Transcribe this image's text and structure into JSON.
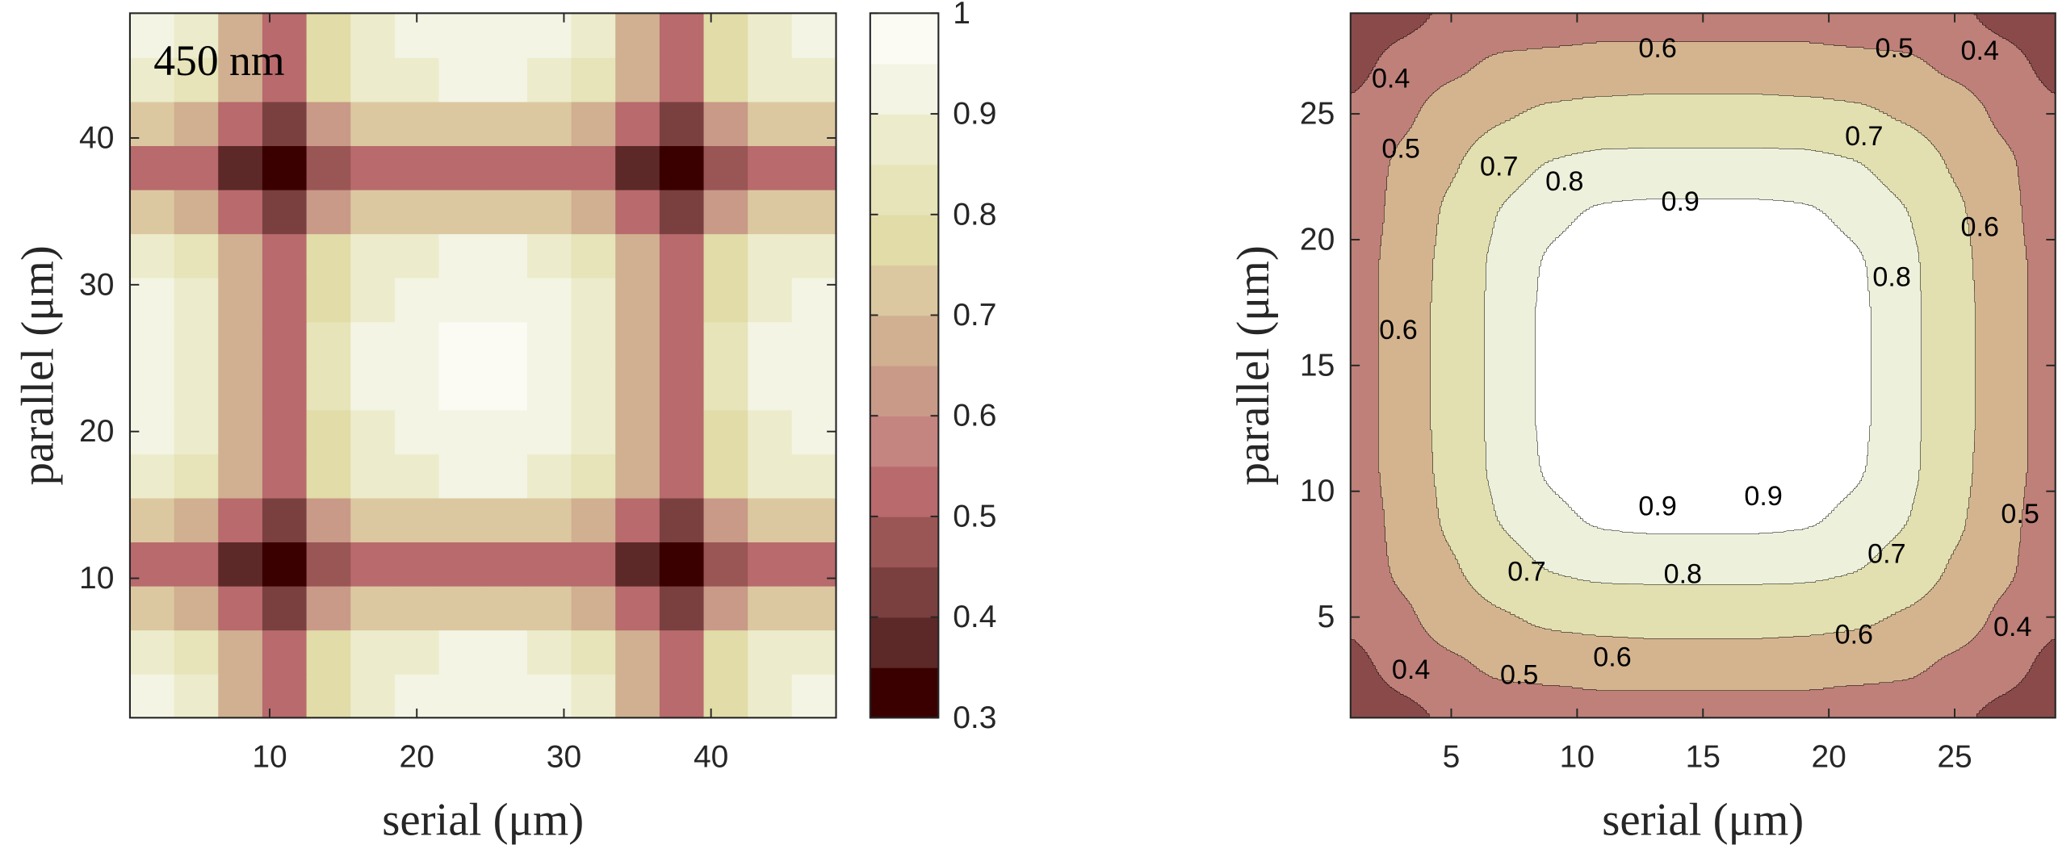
{
  "chart_data": [
    {
      "type": "heatmap",
      "annotation": "450 nm",
      "xlabel": "serial (μm)",
      "ylabel": "parallel (μm)",
      "xlim": [
        0.5,
        48.5
      ],
      "ylim": [
        0.5,
        48.5
      ],
      "xticks": [
        10,
        20,
        30,
        40
      ],
      "yticks": [
        10,
        20,
        30,
        40
      ],
      "x": [
        2,
        5,
        8,
        11,
        14,
        17,
        20,
        23,
        26,
        29,
        32,
        35,
        38,
        41,
        44,
        47
      ],
      "y": [
        2,
        5,
        8,
        11,
        14,
        17,
        20,
        23,
        26,
        29,
        32,
        35,
        38,
        41,
        44,
        47
      ],
      "z": [
        [
          0.9,
          0.86,
          0.67,
          0.52,
          0.78,
          0.89,
          0.9,
          0.93,
          0.93,
          0.9,
          0.86,
          0.67,
          0.52,
          0.78,
          0.89,
          0.9
        ],
        [
          0.88,
          0.84,
          0.65,
          0.51,
          0.76,
          0.87,
          0.88,
          0.91,
          0.91,
          0.88,
          0.84,
          0.65,
          0.51,
          0.76,
          0.87,
          0.88
        ],
        [
          0.71,
          0.68,
          0.53,
          0.41,
          0.62,
          0.71,
          0.71,
          0.74,
          0.74,
          0.71,
          0.68,
          0.53,
          0.41,
          0.62,
          0.71,
          0.71
        ],
        [
          0.52,
          0.5,
          0.39,
          0.3,
          0.45,
          0.52,
          0.52,
          0.54,
          0.54,
          0.52,
          0.5,
          0.39,
          0.3,
          0.45,
          0.52,
          0.52
        ],
        [
          0.71,
          0.68,
          0.53,
          0.41,
          0.62,
          0.71,
          0.71,
          0.74,
          0.74,
          0.71,
          0.68,
          0.53,
          0.41,
          0.62,
          0.71,
          0.71
        ],
        [
          0.88,
          0.84,
          0.65,
          0.51,
          0.76,
          0.87,
          0.88,
          0.91,
          0.91,
          0.88,
          0.84,
          0.65,
          0.51,
          0.76,
          0.87,
          0.88
        ],
        [
          0.9,
          0.86,
          0.67,
          0.52,
          0.78,
          0.89,
          0.9,
          0.93,
          0.93,
          0.9,
          0.86,
          0.67,
          0.52,
          0.78,
          0.89,
          0.9
        ],
        [
          0.93,
          0.88,
          0.69,
          0.54,
          0.8,
          0.92,
          0.93,
          0.96,
          0.96,
          0.93,
          0.88,
          0.69,
          0.54,
          0.8,
          0.92,
          0.93
        ],
        [
          0.93,
          0.88,
          0.69,
          0.54,
          0.8,
          0.92,
          0.93,
          0.96,
          0.96,
          0.93,
          0.88,
          0.69,
          0.54,
          0.8,
          0.92,
          0.93
        ],
        [
          0.9,
          0.86,
          0.67,
          0.52,
          0.78,
          0.89,
          0.9,
          0.93,
          0.93,
          0.9,
          0.86,
          0.67,
          0.52,
          0.78,
          0.89,
          0.9
        ],
        [
          0.88,
          0.84,
          0.65,
          0.51,
          0.76,
          0.87,
          0.88,
          0.91,
          0.91,
          0.88,
          0.84,
          0.65,
          0.51,
          0.76,
          0.87,
          0.88
        ],
        [
          0.71,
          0.68,
          0.53,
          0.41,
          0.62,
          0.71,
          0.71,
          0.74,
          0.74,
          0.71,
          0.68,
          0.53,
          0.41,
          0.62,
          0.71,
          0.71
        ],
        [
          0.52,
          0.5,
          0.39,
          0.3,
          0.45,
          0.52,
          0.52,
          0.54,
          0.54,
          0.52,
          0.5,
          0.39,
          0.3,
          0.45,
          0.52,
          0.52
        ],
        [
          0.71,
          0.68,
          0.53,
          0.41,
          0.62,
          0.71,
          0.71,
          0.74,
          0.74,
          0.71,
          0.68,
          0.53,
          0.41,
          0.62,
          0.71,
          0.71
        ],
        [
          0.88,
          0.84,
          0.65,
          0.51,
          0.76,
          0.87,
          0.88,
          0.91,
          0.91,
          0.88,
          0.84,
          0.65,
          0.51,
          0.76,
          0.87,
          0.88
        ],
        [
          0.9,
          0.86,
          0.67,
          0.52,
          0.78,
          0.89,
          0.9,
          0.93,
          0.93,
          0.9,
          0.86,
          0.67,
          0.52,
          0.78,
          0.89,
          0.9
        ]
      ],
      "clim": [
        0.3,
        1
      ],
      "colors": [
        "#3a0000",
        "#5c2828",
        "#7a4040",
        "#9a5555",
        "#b86a6c",
        "#c48480",
        "#c99a88",
        "#d0b090",
        "#dcc8a0",
        "#e2dca8",
        "#e6e4b8",
        "#ececcc",
        "#f4f4e4",
        "#fbfbf4"
      ],
      "colorbar_ticks": [
        0.3,
        0.4,
        0.5,
        0.6,
        0.7,
        0.8,
        0.9,
        1
      ]
    },
    {
      "type": "contour",
      "xlabel": "serial (μm)",
      "ylabel": "parallel (μm)",
      "xlim": [
        1,
        29
      ],
      "ylim": [
        1,
        29
      ],
      "xticks": [
        5,
        10,
        15,
        20,
        25
      ],
      "yticks": [
        5,
        10,
        15,
        20,
        25
      ],
      "x": [
        1,
        3,
        5,
        7,
        9,
        11,
        13,
        15,
        17,
        19,
        21,
        23,
        25,
        27,
        29
      ],
      "y": [
        1,
        3,
        5,
        7,
        9,
        11,
        13,
        15,
        17,
        19,
        21,
        23,
        25,
        27,
        29
      ],
      "z": [
        [
          0.42,
          0.47,
          0.51,
          0.53,
          0.54,
          0.55,
          0.55,
          0.55,
          0.55,
          0.55,
          0.54,
          0.53,
          0.51,
          0.47,
          0.42
        ],
        [
          0.47,
          0.53,
          0.58,
          0.62,
          0.63,
          0.64,
          0.64,
          0.64,
          0.64,
          0.64,
          0.63,
          0.62,
          0.58,
          0.53,
          0.47
        ],
        [
          0.51,
          0.58,
          0.65,
          0.69,
          0.72,
          0.73,
          0.74,
          0.74,
          0.74,
          0.73,
          0.72,
          0.69,
          0.65,
          0.58,
          0.51
        ],
        [
          0.53,
          0.62,
          0.69,
          0.76,
          0.81,
          0.83,
          0.83,
          0.83,
          0.83,
          0.83,
          0.81,
          0.76,
          0.69,
          0.62,
          0.53
        ],
        [
          0.54,
          0.63,
          0.72,
          0.81,
          0.88,
          0.92,
          0.93,
          0.93,
          0.93,
          0.92,
          0.88,
          0.81,
          0.72,
          0.63,
          0.54
        ],
        [
          0.55,
          0.64,
          0.73,
          0.83,
          0.92,
          0.97,
          1,
          1,
          1,
          0.97,
          0.92,
          0.83,
          0.73,
          0.64,
          0.55
        ],
        [
          0.55,
          0.64,
          0.74,
          0.83,
          0.93,
          1,
          1,
          1,
          1,
          1,
          0.93,
          0.83,
          0.74,
          0.64,
          0.55
        ],
        [
          0.55,
          0.64,
          0.74,
          0.83,
          0.93,
          1,
          1,
          1,
          1,
          1,
          0.93,
          0.83,
          0.74,
          0.64,
          0.55
        ],
        [
          0.55,
          0.64,
          0.74,
          0.83,
          0.93,
          1,
          1,
          1,
          1,
          1,
          0.93,
          0.83,
          0.74,
          0.64,
          0.55
        ],
        [
          0.55,
          0.64,
          0.73,
          0.83,
          0.92,
          0.97,
          1,
          1,
          1,
          0.97,
          0.92,
          0.83,
          0.73,
          0.64,
          0.55
        ],
        [
          0.54,
          0.63,
          0.72,
          0.81,
          0.88,
          0.92,
          0.93,
          0.93,
          0.93,
          0.92,
          0.88,
          0.81,
          0.72,
          0.63,
          0.54
        ],
        [
          0.53,
          0.62,
          0.69,
          0.76,
          0.81,
          0.83,
          0.83,
          0.83,
          0.83,
          0.83,
          0.81,
          0.76,
          0.69,
          0.62,
          0.53
        ],
        [
          0.51,
          0.58,
          0.65,
          0.69,
          0.72,
          0.73,
          0.74,
          0.74,
          0.74,
          0.73,
          0.72,
          0.69,
          0.65,
          0.58,
          0.51
        ],
        [
          0.47,
          0.53,
          0.58,
          0.62,
          0.63,
          0.64,
          0.64,
          0.64,
          0.64,
          0.64,
          0.63,
          0.62,
          0.58,
          0.53,
          0.47
        ],
        [
          0.42,
          0.47,
          0.51,
          0.53,
          0.54,
          0.55,
          0.55,
          0.55,
          0.55,
          0.55,
          0.54,
          0.53,
          0.51,
          0.47,
          0.42
        ]
      ],
      "zlim": [
        0.3,
        1
      ],
      "colors": [
        "#3c0000",
        "#8b4a4a",
        "#bf8078",
        "#d4b48f",
        "#e2e0b0",
        "#eef0dc",
        "#ffffff"
      ],
      "contour_labels": [
        {
          "level": 0.6,
          "x": 13.2,
          "y": 27.6
        },
        {
          "level": 0.5,
          "x": 22.6,
          "y": 27.6
        },
        {
          "level": 0.4,
          "x": 26,
          "y": 27.5
        },
        {
          "level": 0.4,
          "x": 2.6,
          "y": 26.4
        },
        {
          "level": 0.5,
          "x": 3,
          "y": 23.6
        },
        {
          "level": 0.7,
          "x": 6.9,
          "y": 22.9
        },
        {
          "level": 0.8,
          "x": 9.5,
          "y": 22.3
        },
        {
          "level": 0.9,
          "x": 14.1,
          "y": 21.5
        },
        {
          "level": 0.7,
          "x": 21.4,
          "y": 24.1
        },
        {
          "level": 0.6,
          "x": 26,
          "y": 20.5
        },
        {
          "level": 0.8,
          "x": 22.5,
          "y": 18.5
        },
        {
          "level": 0.6,
          "x": 2.9,
          "y": 16.4
        },
        {
          "level": 0.9,
          "x": 13.2,
          "y": 9.4
        },
        {
          "level": 0.9,
          "x": 17.4,
          "y": 9.8
        },
        {
          "level": 0.8,
          "x": 14.2,
          "y": 6.7
        },
        {
          "level": 0.7,
          "x": 8,
          "y": 6.8
        },
        {
          "level": 0.7,
          "x": 22.3,
          "y": 7.5
        },
        {
          "level": 0.6,
          "x": 11.4,
          "y": 3.4
        },
        {
          "level": 0.6,
          "x": 21,
          "y": 4.3
        },
        {
          "level": 0.5,
          "x": 7.7,
          "y": 2.7
        },
        {
          "level": 0.5,
          "x": 27.6,
          "y": 9.1
        },
        {
          "level": 0.4,
          "x": 3.4,
          "y": 2.9
        },
        {
          "level": 0.4,
          "x": 27.3,
          "y": 4.6
        }
      ]
    }
  ]
}
